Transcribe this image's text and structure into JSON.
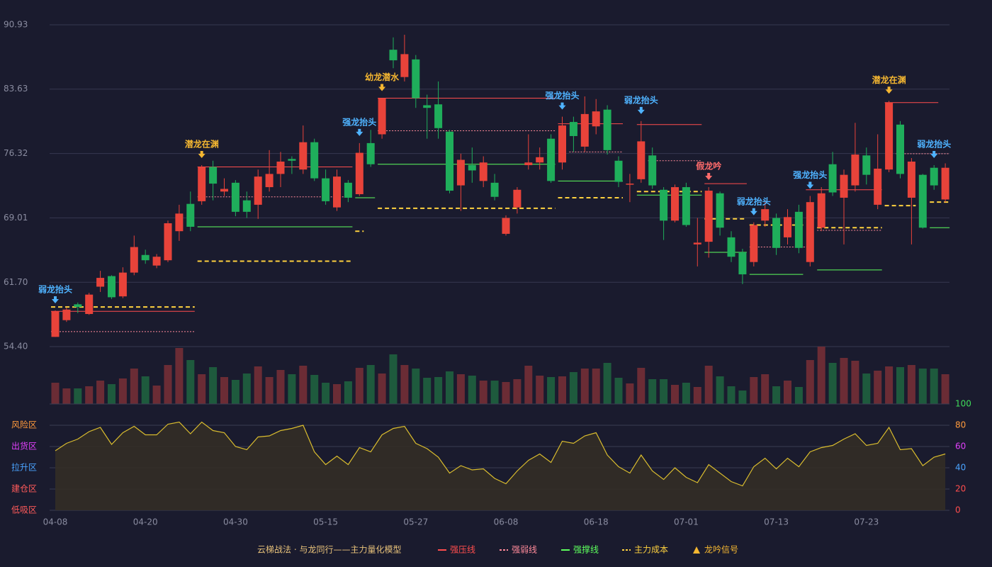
{
  "chart_data": [
    {
      "type": "candlestick",
      "title": "云梯战法 · 与龙同行——主力量化模型",
      "categories": [
        "04-08",
        null,
        null,
        null,
        null,
        null,
        null,
        null,
        "04-20",
        null,
        null,
        null,
        null,
        null,
        null,
        null,
        "04-30",
        null,
        null,
        null,
        null,
        null,
        null,
        null,
        "05-15",
        null,
        null,
        null,
        null,
        null,
        null,
        null,
        "05-27",
        null,
        null,
        null,
        null,
        null,
        null,
        null,
        "06-08",
        null,
        null,
        null,
        null,
        null,
        null,
        null,
        "06-18",
        null,
        null,
        null,
        null,
        null,
        null,
        null,
        "07-01",
        null,
        null,
        null,
        null,
        null,
        null,
        null,
        "07-13",
        null,
        null,
        null,
        null,
        null,
        null,
        null,
        "07-23",
        null,
        null,
        null,
        null,
        null,
        null,
        null
      ],
      "open": [
        55.5,
        57.4,
        59.2,
        58.1,
        61.2,
        62.4,
        60.1,
        62.8,
        64.8,
        63.6,
        64.2,
        67.5,
        70.6,
        70.9,
        74.8,
        72.0,
        73.0,
        71.0,
        70.5,
        72.5,
        74.0,
        75.7,
        74.5,
        77.6,
        73.5,
        70.2,
        73.0,
        71.7,
        77.5,
        78.5,
        88.1,
        85.0,
        87.0,
        81.8,
        81.9,
        78.8,
        72.7,
        75.0,
        73.2,
        73.0,
        67.2,
        70.2,
        75.0,
        75.3,
        78.0,
        75.3,
        79.9,
        77.1,
        79.4,
        81.3,
        75.5,
        72.8,
        73.4,
        76.1,
        72.2,
        68.7,
        72.5,
        66.0,
        66.3,
        71.8,
        66.8,
        65.1,
        64.0,
        68.7,
        69.0,
        66.8,
        69.7,
        64.0,
        67.9,
        75.1,
        71.3,
        72.7,
        76.1,
        70.5,
        74.5,
        79.6,
        71.3,
        73.9,
        74.7,
        71.1
      ],
      "close": [
        58.4,
        58.6,
        58.9,
        60.3,
        62.2,
        60.0,
        62.8,
        65.7,
        64.2,
        64.6,
        68.4,
        69.5,
        68.0,
        74.8,
        72.9,
        72.3,
        69.7,
        69.7,
        73.7,
        74.0,
        75.4,
        75.5,
        77.6,
        73.5,
        70.9,
        73.7,
        71.3,
        76.4,
        75.1,
        82.6,
        86.9,
        87.6,
        82.6,
        81.5,
        79.2,
        72.1,
        75.6,
        74.4,
        75.3,
        71.4,
        69.0,
        72.2,
        75.3,
        75.9,
        73.2,
        79.5,
        78.3,
        80.8,
        81.1,
        76.7,
        73.1,
        72.9,
        77.7,
        72.7,
        68.7,
        72.5,
        68.2,
        66.2,
        72.1,
        67.9,
        64.6,
        62.6,
        68.2,
        70.0,
        65.6,
        69.1,
        65.6,
        70.8,
        71.8,
        71.9,
        73.9,
        76.2,
        73.9,
        74.6,
        82.1,
        74.0,
        75.4,
        67.9,
        72.7,
        74.7
      ],
      "high": [
        58.5,
        58.8,
        59.4,
        60.5,
        63.0,
        62.5,
        63.4,
        67.0,
        65.4,
        64.9,
        68.7,
        70.5,
        72.0,
        75.0,
        75.5,
        73.5,
        73.3,
        72.0,
        74.5,
        76.7,
        76.5,
        76.0,
        79.5,
        78.0,
        74.5,
        74.5,
        73.3,
        77.5,
        79.0,
        82.6,
        89.5,
        89.8,
        87.5,
        83.0,
        84.5,
        79.0,
        76.3,
        77.0,
        76.0,
        74.0,
        69.3,
        72.5,
        78.5,
        77.0,
        78.5,
        80.5,
        80.5,
        82.8,
        82.5,
        81.8,
        76.0,
        74.0,
        80.0,
        77.0,
        72.5,
        72.8,
        73.0,
        69.0,
        72.5,
        72.0,
        67.5,
        65.5,
        68.5,
        71.0,
        69.5,
        70.0,
        70.5,
        71.5,
        72.5,
        76.5,
        74.5,
        79.8,
        77.0,
        78.5,
        82.3,
        80.0,
        75.8,
        74.0,
        75.0,
        75.2
      ],
      "low": [
        55.5,
        57.2,
        58.2,
        58.0,
        60.6,
        59.8,
        59.9,
        62.5,
        63.8,
        63.3,
        64.0,
        66.4,
        67.5,
        70.5,
        71.0,
        71.5,
        69.2,
        69.0,
        68.9,
        72.0,
        72.5,
        74.0,
        74.0,
        73.2,
        70.5,
        69.8,
        70.8,
        71.5,
        74.8,
        78.0,
        86.0,
        84.5,
        81.5,
        78.0,
        78.0,
        71.8,
        69.8,
        73.0,
        72.5,
        71.0,
        67.0,
        69.5,
        74.5,
        74.5,
        73.0,
        74.5,
        76.5,
        76.5,
        78.5,
        76.2,
        72.5,
        70.8,
        73.0,
        72.3,
        66.5,
        68.5,
        68.0,
        63.5,
        64.5,
        67.0,
        64.0,
        61.5,
        63.5,
        68.0,
        64.8,
        66.0,
        65.0,
        63.5,
        67.5,
        71.5,
        66.0,
        72.0,
        72.8,
        70.0,
        74.2,
        73.5,
        66.0,
        67.8,
        72.2,
        70.8
      ],
      "up_color": "#e8433a",
      "down_color": "#1fae5b",
      "ylim": [
        54.4,
        90.93
      ],
      "yticks": [
        {
          "value": 54.4,
          "label": "54.40"
        },
        {
          "value": 61.7,
          "label": "61.70"
        },
        69.01,
        76.32,
        83.63,
        90.93
      ],
      "grid": true,
      "levels": [
        {
          "name": "强压线",
          "color": "#ff4d4d",
          "style": "solid",
          "segments": [
            {
              "start": 0,
              "end": 12,
              "value": 58.4
            },
            {
              "start": 13,
              "end": 26,
              "value": 74.8
            },
            {
              "start": 29,
              "end": 44,
              "value": 82.6
            },
            {
              "start": 45,
              "end": 50,
              "value": 79.7
            },
            {
              "start": 52,
              "end": 57,
              "value": 79.6
            },
            {
              "start": 58,
              "end": 61,
              "value": 72.9
            },
            {
              "start": 67,
              "end": 73,
              "value": 72.2
            },
            {
              "start": 74,
              "end": 78,
              "value": 82.1
            }
          ]
        },
        {
          "name": "强弱线",
          "color": "#ff8a9a",
          "style": "dotted",
          "segments": [
            {
              "start": 0,
              "end": 12,
              "value": 56.1
            },
            {
              "start": 13,
              "end": 26,
              "value": 71.4
            },
            {
              "start": 29,
              "end": 44,
              "value": 78.9
            },
            {
              "start": 46,
              "end": 50,
              "value": 76.5
            },
            {
              "start": 53,
              "end": 57,
              "value": 75.5
            },
            {
              "start": 62,
              "end": 67,
              "value": 65.7
            },
            {
              "start": 68,
              "end": 73,
              "value": 67.6
            },
            {
              "start": 75,
              "end": 79,
              "value": 76.3
            }
          ]
        },
        {
          "name": "强撑线",
          "color": "#5dff5d",
          "style": "solid",
          "segments": [
            {
              "start": 13,
              "end": 26,
              "value": 68.0
            },
            {
              "start": 27,
              "end": 28,
              "value": 71.3
            },
            {
              "start": 29,
              "end": 44,
              "value": 75.1
            },
            {
              "start": 45,
              "end": 50,
              "value": 73.2
            },
            {
              "start": 52,
              "end": 57,
              "value": 71.6
            },
            {
              "start": 58,
              "end": 61,
              "value": 65.1
            },
            {
              "start": 62,
              "end": 66,
              "value": 62.6
            },
            {
              "start": 68,
              "end": 73,
              "value": 63.1
            },
            {
              "start": 78,
              "end": 79,
              "value": 67.9
            }
          ]
        },
        {
          "name": "主力成本",
          "color": "#ffd23f",
          "style": "dashed",
          "segments": [
            {
              "start": 0,
              "end": 12,
              "value": 58.9
            },
            {
              "start": 13,
              "end": 26,
              "value": 64.1
            },
            {
              "start": 27,
              "end": 27,
              "value": 67.5
            },
            {
              "start": 29,
              "end": 44,
              "value": 70.1
            },
            {
              "start": 45,
              "end": 50,
              "value": 71.3
            },
            {
              "start": 52,
              "end": 57,
              "value": 72.0
            },
            {
              "start": 58,
              "end": 61,
              "value": 68.9
            },
            {
              "start": 62,
              "end": 66,
              "value": 68.2
            },
            {
              "start": 68,
              "end": 73,
              "value": 67.9
            },
            {
              "start": 74,
              "end": 76,
              "value": 70.4
            },
            {
              "start": 78,
              "end": 79,
              "value": 70.8
            }
          ]
        }
      ],
      "signals": {
        "name": "龙吟信号",
        "color": "#f5b731",
        "points": [
          {
            "index": 0,
            "label": "弱龙抬头",
            "color": "#4fb3ff"
          },
          {
            "index": 13,
            "label": "潜龙在渊",
            "color": "#f5b731"
          },
          {
            "index": 27,
            "label": "强龙抬头",
            "color": "#4fb3ff"
          },
          {
            "index": 29,
            "label": "幼龙潜水",
            "color": "#f5b731"
          },
          {
            "index": 45,
            "label": "强龙抬头",
            "color": "#4fb3ff"
          },
          {
            "index": 52,
            "label": "弱龙抬头",
            "color": "#4fb3ff"
          },
          {
            "index": 58,
            "label": "假龙吟",
            "color": "#ff6b6b"
          },
          {
            "index": 62,
            "label": "弱龙抬头",
            "color": "#4fb3ff"
          },
          {
            "index": 67,
            "label": "强龙抬头",
            "color": "#4fb3ff"
          },
          {
            "index": 74,
            "label": "潜龙在渊",
            "color": "#f5b731"
          },
          {
            "index": 78,
            "label": "弱龙抬头",
            "color": "#4fb3ff"
          }
        ]
      }
    },
    {
      "type": "bar",
      "values": [
        30,
        22,
        22,
        25,
        33,
        28,
        36,
        50,
        39,
        26,
        55,
        79,
        62,
        42,
        52,
        38,
        34,
        43,
        53,
        38,
        48,
        42,
        54,
        41,
        30,
        28,
        32,
        51,
        55,
        43,
        70,
        55,
        50,
        37,
        38,
        46,
        42,
        40,
        33,
        33,
        31,
        35,
        54,
        40,
        38,
        39,
        45,
        50,
        50,
        58,
        37,
        29,
        51,
        35,
        35,
        27,
        30,
        24,
        54,
        39,
        25,
        19,
        38,
        42,
        25,
        33,
        24,
        62,
        81,
        58,
        65,
        61,
        43,
        47,
        53,
        52,
        55,
        50,
        50,
        42
      ],
      "up_color": "#6b2c35",
      "down_color": "#1e5a3d"
    },
    {
      "type": "area",
      "values": [
        56,
        63,
        67,
        74,
        78,
        62,
        73,
        79,
        71,
        71,
        81,
        83,
        72,
        83,
        75,
        73,
        60,
        57,
        69,
        70,
        75,
        77,
        80,
        55,
        43,
        51,
        43,
        59,
        55,
        71,
        77,
        79,
        63,
        58,
        50,
        35,
        42,
        38,
        39,
        30,
        25,
        37,
        47,
        53,
        45,
        65,
        63,
        70,
        73,
        52,
        41,
        35,
        52,
        37,
        29,
        40,
        31,
        26,
        43,
        35,
        27,
        23,
        41,
        49,
        39,
        49,
        41,
        55,
        59,
        61,
        67,
        72,
        61,
        63,
        78,
        57,
        58,
        42,
        50,
        53
      ],
      "color": "#d9bc2e",
      "area_color": "#332e26",
      "ylim": [
        0,
        100
      ],
      "yticks": [
        0,
        20,
        40,
        60,
        80,
        100
      ],
      "ytick_colors": [
        "#ff4d4d",
        "#ff4d4d",
        "#4aa3ff",
        "#e040fb",
        "#ff9a3c",
        "#3fdc5a"
      ],
      "zones": [
        {
          "label": "风险区",
          "value": 80,
          "color": "#ff9a3c"
        },
        {
          "label": "出货区",
          "value": 60,
          "color": "#e040fb"
        },
        {
          "label": "拉升区",
          "value": 40,
          "color": "#4aa3ff"
        },
        {
          "label": "建仓区",
          "value": 20,
          "color": "#ff5a5a"
        },
        {
          "label": "低吸区",
          "value": 0,
          "color": "#ff5a5a"
        }
      ]
    }
  ]
}
